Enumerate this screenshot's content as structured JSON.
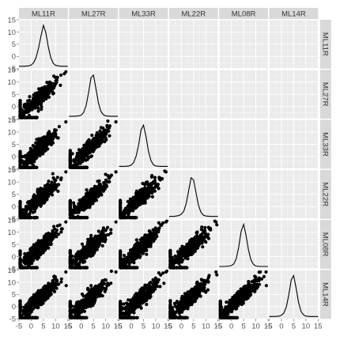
{
  "chart_data": {
    "type": "scatter-matrix",
    "variables": [
      "ML11R",
      "ML27R",
      "ML33R",
      "ML22R",
      "ML08R",
      "ML14R"
    ],
    "upper_triangle": "blank",
    "diagonal": "density",
    "lower_triangle": "scatter",
    "axis_range": [
      -5,
      15
    ],
    "x_ticks": [
      "-5",
      "0",
      "5",
      "10",
      "15"
    ],
    "y_ticks": [
      "15",
      "10",
      "5",
      "0",
      "-5"
    ],
    "density_curves": [
      {
        "variable": "ML11R",
        "x": [
          -5,
          -3,
          -1,
          0,
          1,
          2,
          3,
          4,
          5,
          6,
          7,
          8,
          9,
          10,
          12,
          15
        ],
        "y": [
          0.0,
          0.0,
          0.01,
          0.03,
          0.08,
          0.2,
          0.42,
          0.7,
          0.95,
          0.78,
          0.45,
          0.2,
          0.07,
          0.02,
          0.0,
          0.0
        ]
      },
      {
        "variable": "ML27R",
        "x": [
          -5,
          -3,
          -1,
          0,
          1,
          2,
          3,
          4,
          5,
          6,
          7,
          8,
          9,
          10,
          12,
          15
        ],
        "y": [
          0.0,
          0.0,
          0.01,
          0.03,
          0.09,
          0.25,
          0.55,
          0.9,
          0.96,
          0.65,
          0.32,
          0.12,
          0.04,
          0.01,
          0.0,
          0.0
        ]
      },
      {
        "variable": "ML33R",
        "x": [
          -5,
          -3,
          -1,
          0,
          1,
          2,
          3,
          4,
          5,
          6,
          7,
          8,
          9,
          10,
          12,
          15
        ],
        "y": [
          0.0,
          0.0,
          0.01,
          0.03,
          0.09,
          0.24,
          0.5,
          0.85,
          0.96,
          0.7,
          0.36,
          0.14,
          0.04,
          0.01,
          0.0,
          0.0
        ]
      },
      {
        "variable": "ML22R",
        "x": [
          -5,
          -3,
          -1,
          0,
          1,
          2,
          3,
          4,
          5,
          6,
          7,
          8,
          9,
          10,
          12,
          15
        ],
        "y": [
          0.0,
          0.0,
          0.02,
          0.05,
          0.12,
          0.3,
          0.6,
          0.9,
          0.85,
          0.55,
          0.26,
          0.1,
          0.03,
          0.01,
          0.0,
          0.0
        ]
      },
      {
        "variable": "ML08R",
        "x": [
          -5,
          -3,
          -1,
          0,
          1,
          2,
          3,
          4,
          5,
          6,
          7,
          8,
          9,
          10,
          12,
          15
        ],
        "y": [
          0.0,
          0.0,
          0.01,
          0.02,
          0.06,
          0.18,
          0.45,
          0.82,
          0.98,
          0.72,
          0.38,
          0.15,
          0.05,
          0.01,
          0.0,
          0.0
        ]
      },
      {
        "variable": "ML14R",
        "x": [
          -5,
          -3,
          -1,
          0,
          1,
          2,
          3,
          4,
          5,
          6,
          7,
          8,
          9,
          10,
          12,
          15
        ],
        "y": [
          0.0,
          0.0,
          0.01,
          0.03,
          0.08,
          0.22,
          0.5,
          0.85,
          0.95,
          0.66,
          0.33,
          0.12,
          0.04,
          0.01,
          0.0,
          0.0
        ]
      }
    ],
    "scatter_pairs": [
      {
        "x": "ML11R",
        "y": "ML27R",
        "x_floor": -4.5,
        "y_floor": -4.5
      },
      {
        "x": "ML11R",
        "y": "ML33R",
        "x_floor": -4.5,
        "y_floor": -4.5
      },
      {
        "x": "ML27R",
        "y": "ML33R",
        "x_floor": -4.5,
        "y_floor": -4.5
      },
      {
        "x": "ML11R",
        "y": "ML22R",
        "x_floor": -4.5,
        "y_floor": -4.5
      },
      {
        "x": "ML27R",
        "y": "ML22R",
        "x_floor": -4.5,
        "y_floor": -4.5
      },
      {
        "x": "ML33R",
        "y": "ML22R",
        "x_floor": -4.5,
        "y_floor": -4.5
      },
      {
        "x": "ML11R",
        "y": "ML08R",
        "x_floor": -4.5,
        "y_floor": -4.5
      },
      {
        "x": "ML27R",
        "y": "ML08R",
        "x_floor": -4.5,
        "y_floor": -4.5
      },
      {
        "x": "ML33R",
        "y": "ML08R",
        "x_floor": -4.5,
        "y_floor": -4.5
      },
      {
        "x": "ML22R",
        "y": "ML08R",
        "x_floor": -4.5,
        "y_floor": -4.5
      },
      {
        "x": "ML11R",
        "y": "ML14R",
        "x_floor": -4.5,
        "y_floor": -4.5
      },
      {
        "x": "ML27R",
        "y": "ML14R",
        "x_floor": -4.5,
        "y_floor": -4.5
      },
      {
        "x": "ML33R",
        "y": "ML14R",
        "x_floor": -4.5,
        "y_floor": -4.5
      },
      {
        "x": "ML22R",
        "y": "ML14R",
        "x_floor": -4.5,
        "y_floor": -4.5
      },
      {
        "x": "ML08R",
        "y": "ML14R",
        "x_floor": -4.5,
        "y_floor": -4.5
      }
    ],
    "colors": {
      "panel": "#ebebeb",
      "strip": "#d9d9d9",
      "points": "#000000",
      "grid": "#ffffff"
    }
  }
}
